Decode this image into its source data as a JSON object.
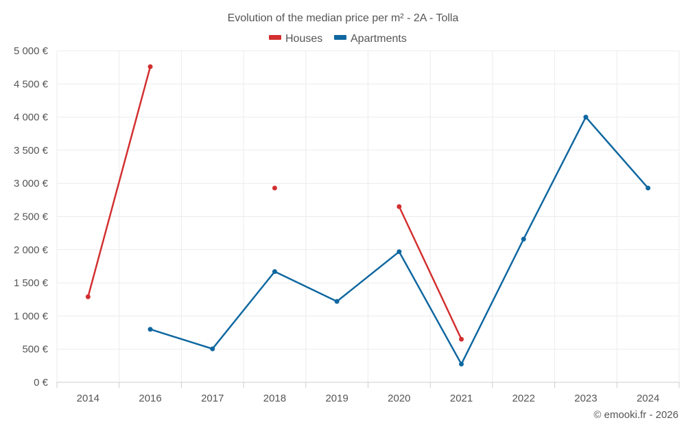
{
  "chart_data": {
    "type": "line",
    "title": "Evolution of the median price per m² - 2A - Tolla",
    "categories": [
      "2014",
      "2016",
      "2017",
      "2018",
      "2019",
      "2020",
      "2021",
      "2022",
      "2023",
      "2024"
    ],
    "ylim": [
      0,
      5000
    ],
    "y_ticks": [
      0,
      500,
      1000,
      1500,
      2000,
      2500,
      3000,
      3500,
      4000,
      4500,
      5000
    ],
    "y_tick_labels": [
      "0 €",
      "500 €",
      "1 000 €",
      "1 500 €",
      "2 000 €",
      "2 500 €",
      "3 000 €",
      "3 500 €",
      "4 000 €",
      "4 500 €",
      "5 000 €"
    ],
    "grid": true,
    "legend_position": "top-center",
    "series": [
      {
        "name": "Houses",
        "color": "#d32f2f",
        "values": [
          1290,
          4760,
          null,
          2930,
          null,
          2650,
          650,
          null,
          null,
          null
        ]
      },
      {
        "name": "Apartments",
        "color": "#0f67a0",
        "values": [
          null,
          800,
          505,
          1670,
          1220,
          1970,
          275,
          2160,
          4000,
          2930
        ]
      }
    ],
    "credit": "© emooki.fr - 2026"
  }
}
